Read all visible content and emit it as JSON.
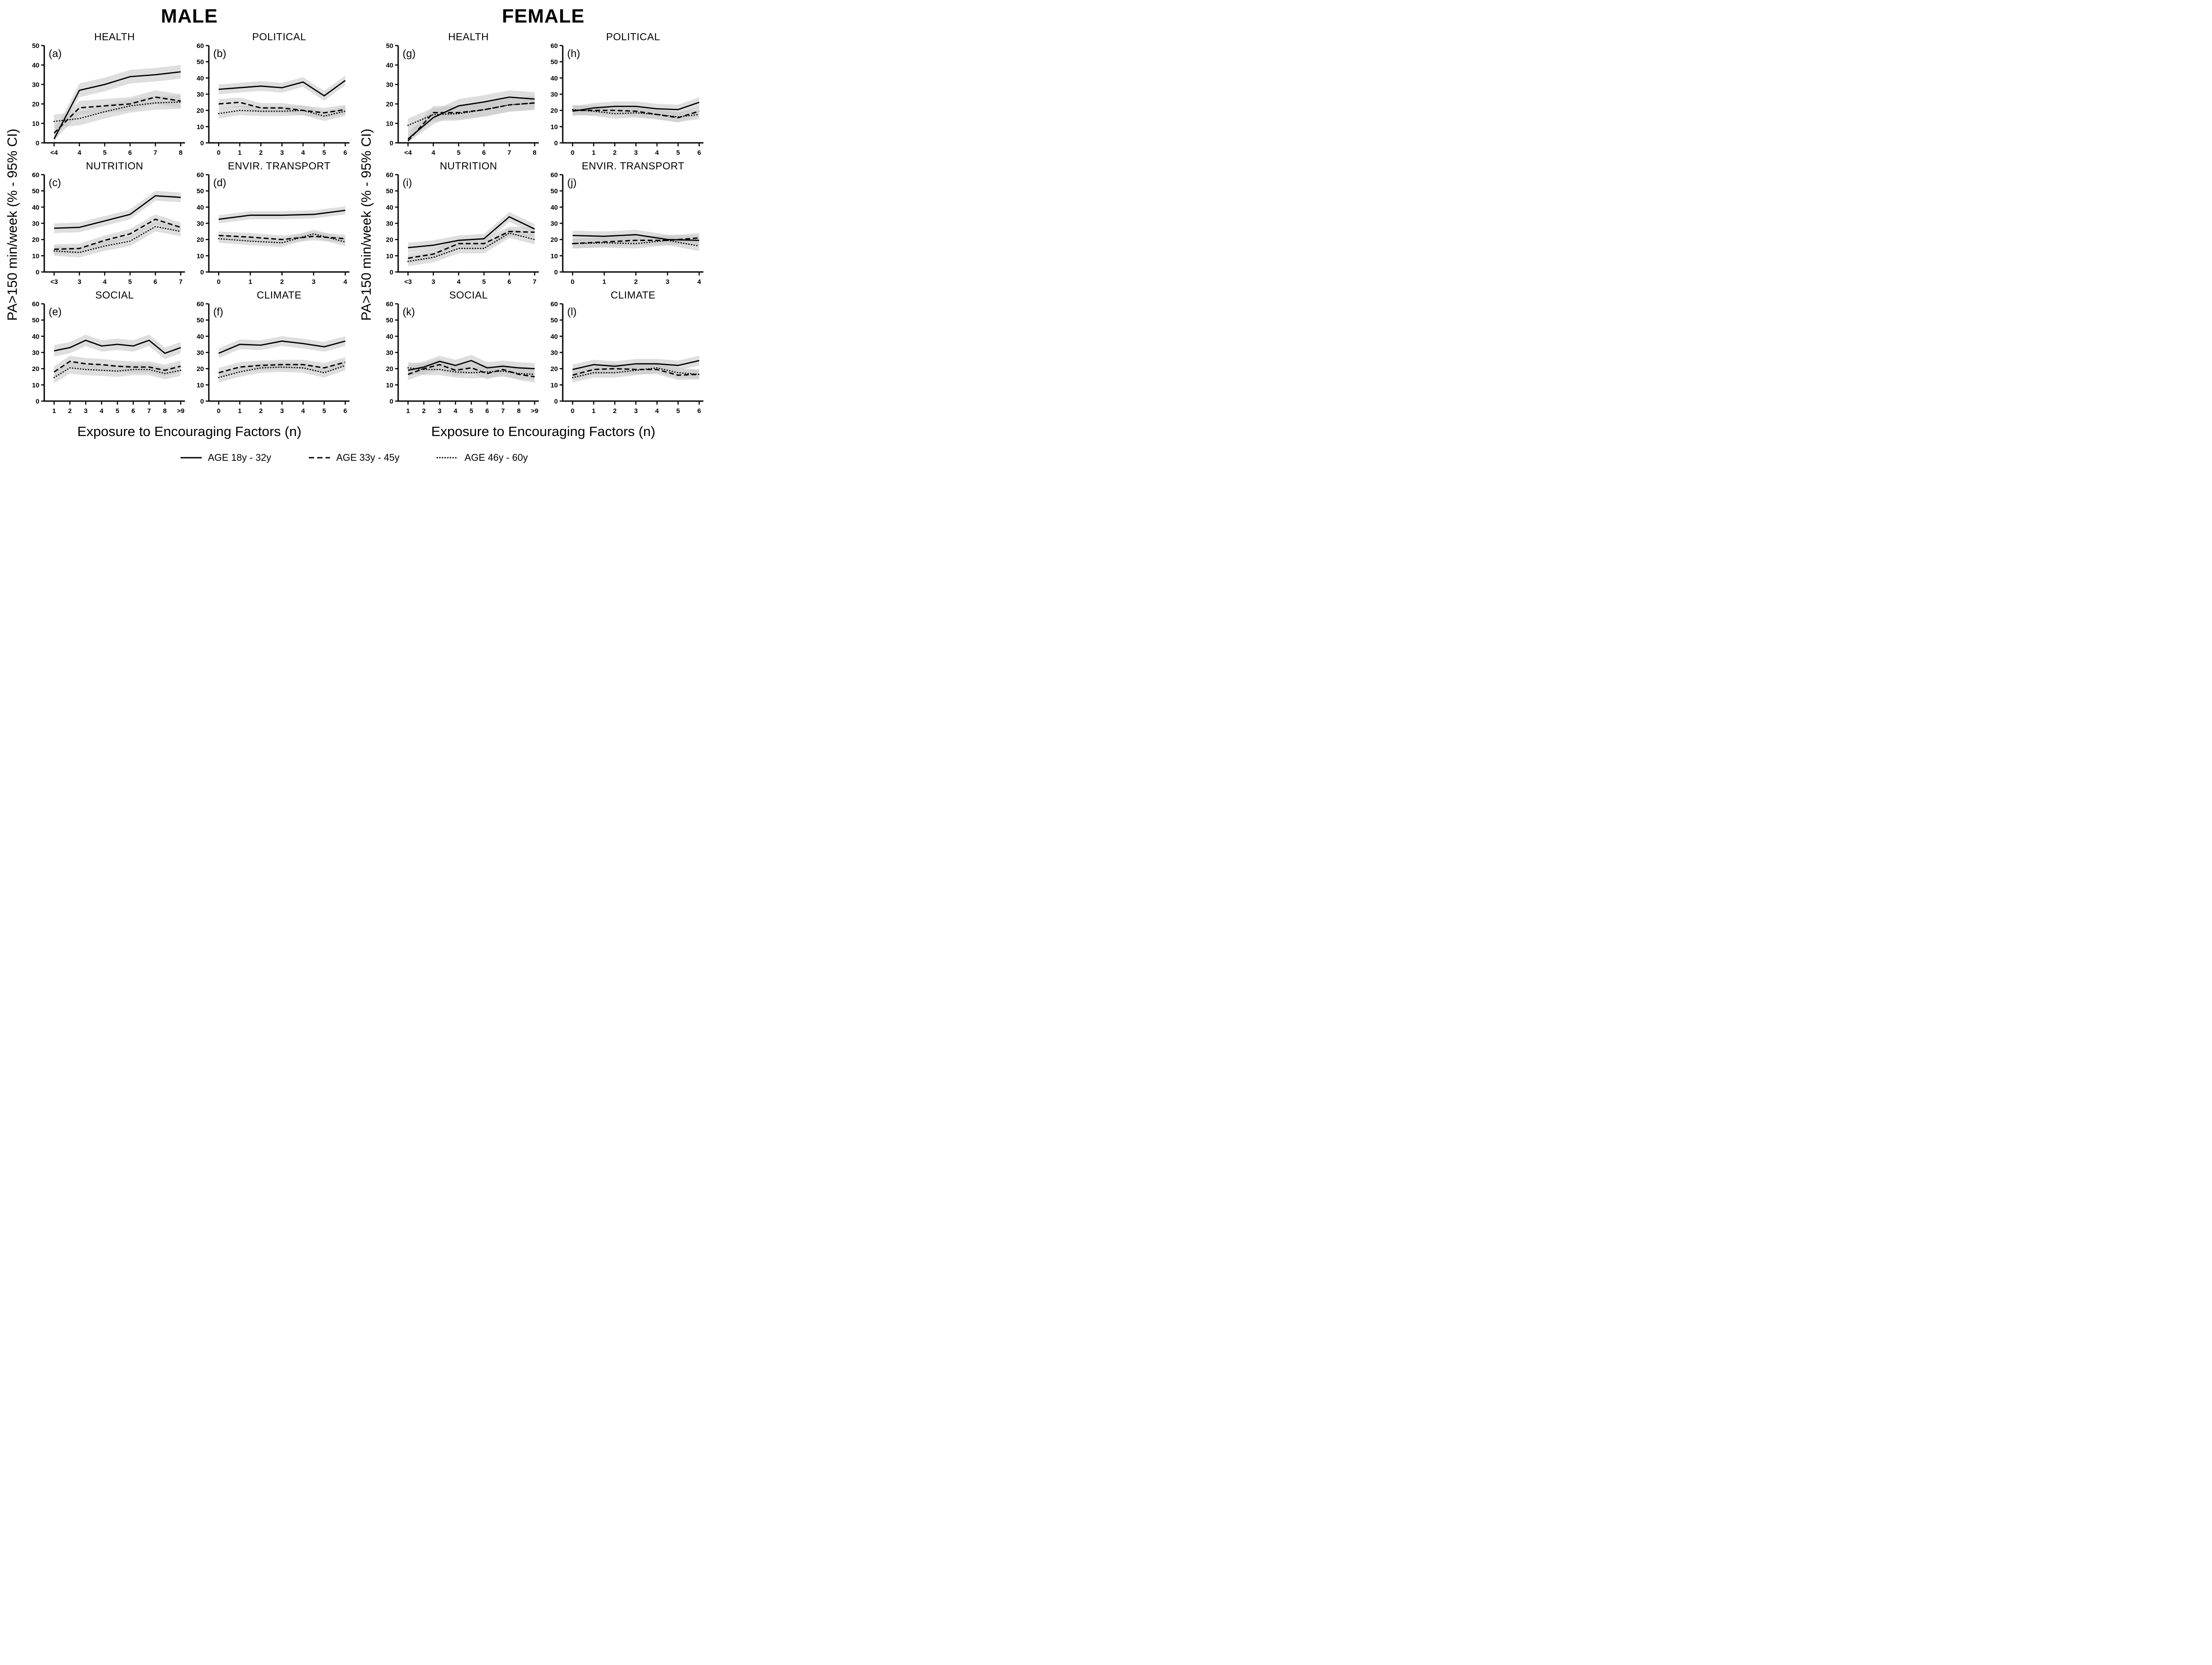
{
  "figure": {
    "male_title": "MALE",
    "female_title": "FEMALE",
    "y_axis_label": "PA>150 min/week (% - 95% CI)",
    "x_axis_label": "Exposure to Encouraging Factors  (n)",
    "band_color": "#c8c8c8",
    "line_color": "#000000",
    "legend": [
      {
        "label": "AGE 18y - 32y",
        "style": "solid"
      },
      {
        "label": "AGE 33y - 45y",
        "style": "dashed"
      },
      {
        "label": "AGE 46y - 60y",
        "style": "dotted"
      }
    ]
  },
  "chart_data": [
    {
      "panel_label": "(a)",
      "group": "MALE",
      "title": "HEALTH",
      "type": "line",
      "x_categories": [
        "<4",
        "4",
        "5",
        "6",
        "7",
        "8"
      ],
      "ylim": [
        0,
        50
      ],
      "y_ticks": [
        0,
        10,
        20,
        30,
        40,
        50
      ],
      "band_halfwidth": 3.5,
      "series": [
        {
          "name": "AGE 18y - 32y",
          "style": "solid",
          "values": [
            2,
            27,
            30,
            34,
            35,
            36.5
          ]
        },
        {
          "name": "AGE 33y - 45y",
          "style": "dashed",
          "values": [
            5,
            18,
            19,
            20,
            23.5,
            21.5
          ]
        },
        {
          "name": "AGE 46y - 60y",
          "style": "dotted",
          "values": [
            11,
            12.5,
            16,
            19,
            20.5,
            21
          ]
        }
      ]
    },
    {
      "panel_label": "(b)",
      "group": "MALE",
      "title": "POLITICAL",
      "type": "line",
      "x_categories": [
        "0",
        "1",
        "2",
        "3",
        "4",
        "5",
        "6"
      ],
      "ylim": [
        0,
        60
      ],
      "y_ticks": [
        0,
        10,
        20,
        30,
        40,
        50,
        60
      ],
      "band_halfwidth": 3,
      "series": [
        {
          "name": "AGE 18y - 32y",
          "style": "solid",
          "values": [
            33,
            34,
            35,
            34,
            37.5,
            29,
            38.5
          ]
        },
        {
          "name": "AGE 33y - 45y",
          "style": "dashed",
          "values": [
            24,
            25,
            21.5,
            21.5,
            20,
            18.5,
            20.5
          ]
        },
        {
          "name": "AGE 46y - 60y",
          "style": "dotted",
          "values": [
            18,
            20,
            19.5,
            19.5,
            20,
            16.5,
            19.5
          ]
        }
      ]
    },
    {
      "panel_label": "(c)",
      "group": "MALE",
      "title": "NUTRITION",
      "type": "line",
      "x_categories": [
        "<3",
        "3",
        "4",
        "5",
        "6",
        "7"
      ],
      "ylim": [
        0,
        60
      ],
      "y_ticks": [
        0,
        10,
        20,
        30,
        40,
        50,
        60
      ],
      "band_halfwidth": 3,
      "series": [
        {
          "name": "AGE 18y - 32y",
          "style": "solid",
          "values": [
            27,
            27.5,
            31.5,
            35.5,
            47,
            46
          ]
        },
        {
          "name": "AGE 33y - 45y",
          "style": "dashed",
          "values": [
            14,
            14.5,
            19.5,
            23.5,
            32.5,
            27.5
          ]
        },
        {
          "name": "AGE 46y - 60y",
          "style": "dotted",
          "values": [
            13,
            12,
            16,
            19,
            28,
            25
          ]
        }
      ]
    },
    {
      "panel_label": "(d)",
      "group": "MALE",
      "title": "ENVIR. TRANSPORT",
      "type": "line",
      "x_categories": [
        "0",
        "1",
        "2",
        "3",
        "4"
      ],
      "ylim": [
        0,
        60
      ],
      "y_ticks": [
        0,
        10,
        20,
        30,
        40,
        50,
        60
      ],
      "band_halfwidth": 2.5,
      "series": [
        {
          "name": "AGE 18y - 32y",
          "style": "solid",
          "values": [
            32.5,
            35,
            35,
            35.5,
            38
          ]
        },
        {
          "name": "AGE 33y - 45y",
          "style": "dashed",
          "values": [
            22.5,
            21.5,
            20,
            22,
            20.5
          ]
        },
        {
          "name": "AGE 46y - 60y",
          "style": "dotted",
          "values": [
            20.5,
            19,
            18,
            23.5,
            18.5
          ]
        }
      ]
    },
    {
      "panel_label": "(e)",
      "group": "MALE",
      "title": "SOCIAL",
      "type": "line",
      "x_categories": [
        "1",
        "2",
        "3",
        "4",
        "5",
        "6",
        "7",
        "8",
        ">9"
      ],
      "ylim": [
        0,
        60
      ],
      "y_ticks": [
        0,
        10,
        20,
        30,
        40,
        50,
        60
      ],
      "band_halfwidth": 3.5,
      "series": [
        {
          "name": "AGE 18y - 32y",
          "style": "solid",
          "values": [
            31,
            33,
            37.5,
            34,
            35,
            34,
            37.5,
            29.5,
            33
          ]
        },
        {
          "name": "AGE 33y - 45y",
          "style": "dashed",
          "values": [
            18,
            24.5,
            23,
            22.5,
            21.5,
            21,
            21,
            19,
            21.5
          ]
        },
        {
          "name": "AGE 46y - 60y",
          "style": "dotted",
          "values": [
            14.5,
            20.5,
            19.5,
            19,
            18.5,
            19.5,
            19.5,
            17,
            19
          ]
        }
      ]
    },
    {
      "panel_label": "(f)",
      "group": "MALE",
      "title": "CLIMATE",
      "type": "line",
      "x_categories": [
        "0",
        "1",
        "2",
        "3",
        "4",
        "5",
        "6"
      ],
      "ylim": [
        0,
        60
      ],
      "y_ticks": [
        0,
        10,
        20,
        30,
        40,
        50,
        60
      ],
      "band_halfwidth": 3,
      "series": [
        {
          "name": "AGE 18y - 32y",
          "style": "solid",
          "values": [
            29.5,
            35,
            34.5,
            37,
            35.5,
            33.5,
            37
          ]
        },
        {
          "name": "AGE 33y - 45y",
          "style": "dashed",
          "values": [
            17.5,
            21,
            22,
            22.5,
            22.5,
            20.5,
            24
          ]
        },
        {
          "name": "AGE 46y - 60y",
          "style": "dotted",
          "values": [
            14.5,
            18,
            20.5,
            21,
            20.5,
            17.5,
            22
          ]
        }
      ]
    },
    {
      "panel_label": "(g)",
      "group": "FEMALE",
      "title": "HEALTH",
      "type": "line",
      "x_categories": [
        "<4",
        "4",
        "5",
        "6",
        "7",
        "8"
      ],
      "ylim": [
        0,
        50
      ],
      "y_ticks": [
        0,
        10,
        20,
        30,
        40,
        50
      ],
      "band_halfwidth": 3.5,
      "series": [
        {
          "name": "AGE 18y - 32y",
          "style": "solid",
          "values": [
            2,
            13,
            19,
            21,
            23.5,
            22.5
          ]
        },
        {
          "name": "AGE 33y - 45y",
          "style": "dashed",
          "values": [
            1,
            15.5,
            15.5,
            17,
            19.5,
            20.5
          ]
        },
        {
          "name": "AGE 46y - 60y",
          "style": "dotted",
          "values": [
            9,
            14.5,
            15,
            17,
            19.5,
            20.5
          ]
        }
      ]
    },
    {
      "panel_label": "(h)",
      "group": "FEMALE",
      "title": "POLITICAL",
      "type": "line",
      "x_categories": [
        "0",
        "1",
        "2",
        "3",
        "4",
        "5",
        "6"
      ],
      "ylim": [
        0,
        60
      ],
      "y_ticks": [
        0,
        10,
        20,
        30,
        40,
        50,
        60
      ],
      "band_halfwidth": 3,
      "series": [
        {
          "name": "AGE 18y - 32y",
          "style": "solid",
          "values": [
            19.5,
            21.5,
            22.5,
            22.5,
            21,
            20.5,
            25
          ]
        },
        {
          "name": "AGE 33y - 45y",
          "style": "dashed",
          "values": [
            20,
            20,
            20,
            19.5,
            17.5,
            15.5,
            19.5
          ]
        },
        {
          "name": "AGE 46y - 60y",
          "style": "dotted",
          "values": [
            20.5,
            19.5,
            18,
            18.5,
            17.5,
            16,
            17.5
          ]
        }
      ]
    },
    {
      "panel_label": "(i)",
      "group": "FEMALE",
      "title": "NUTRITION",
      "type": "line",
      "x_categories": [
        "<3",
        "3",
        "4",
        "5",
        "6",
        "7"
      ],
      "ylim": [
        0,
        60
      ],
      "y_ticks": [
        0,
        10,
        20,
        30,
        40,
        50,
        60
      ],
      "band_halfwidth": 3,
      "series": [
        {
          "name": "AGE 18y - 32y",
          "style": "solid",
          "values": [
            15,
            16.5,
            19.5,
            20.5,
            34,
            26.5
          ]
        },
        {
          "name": "AGE 33y - 45y",
          "style": "dashed",
          "values": [
            8.5,
            11,
            17.5,
            17.5,
            25,
            24.5
          ]
        },
        {
          "name": "AGE 46y - 60y",
          "style": "dotted",
          "values": [
            6.5,
            9,
            14.5,
            14.5,
            24,
            20
          ]
        }
      ]
    },
    {
      "panel_label": "(j)",
      "group": "FEMALE",
      "title": "ENVIR. TRANSPORT",
      "type": "line",
      "x_categories": [
        "0",
        "1",
        "2",
        "3",
        "4"
      ],
      "ylim": [
        0,
        60
      ],
      "y_ticks": [
        0,
        10,
        20,
        30,
        40,
        50,
        60
      ],
      "band_halfwidth": 3,
      "series": [
        {
          "name": "AGE 18y - 32y",
          "style": "solid",
          "values": [
            22.5,
            22,
            23,
            20,
            19.5
          ]
        },
        {
          "name": "AGE 33y - 45y",
          "style": "dashed",
          "values": [
            17.5,
            18.5,
            19.5,
            19.5,
            21
          ]
        },
        {
          "name": "AGE 46y - 60y",
          "style": "dotted",
          "values": [
            17.5,
            18,
            17.5,
            19.5,
            16
          ]
        }
      ]
    },
    {
      "panel_label": "(k)",
      "group": "FEMALE",
      "title": "SOCIAL",
      "type": "line",
      "x_categories": [
        "1",
        "2",
        "3",
        "4",
        "5",
        "6",
        "7",
        "8",
        ">9"
      ],
      "ylim": [
        0,
        60
      ],
      "y_ticks": [
        0,
        10,
        20,
        30,
        40,
        50,
        60
      ],
      "band_halfwidth": 3.5,
      "series": [
        {
          "name": "AGE 18y - 32y",
          "style": "solid",
          "values": [
            19,
            21,
            24.5,
            22,
            25,
            20.5,
            21.5,
            20.5,
            20
          ]
        },
        {
          "name": "AGE 33y - 45y",
          "style": "dashed",
          "values": [
            16.5,
            20,
            22.5,
            19,
            20.5,
            17,
            19.5,
            16.5,
            15
          ]
        },
        {
          "name": "AGE 46y - 60y",
          "style": "dotted",
          "values": [
            20.5,
            19.5,
            19.5,
            18,
            17.5,
            18,
            18.5,
            17,
            16.5
          ]
        }
      ]
    },
    {
      "panel_label": "(l)",
      "group": "FEMALE",
      "title": "CLIMATE",
      "type": "line",
      "x_categories": [
        "0",
        "1",
        "2",
        "3",
        "4",
        "5",
        "6"
      ],
      "ylim": [
        0,
        60
      ],
      "y_ticks": [
        0,
        10,
        20,
        30,
        40,
        50,
        60
      ],
      "band_halfwidth": 3,
      "series": [
        {
          "name": "AGE 18y - 32y",
          "style": "solid",
          "values": [
            19.5,
            22.5,
            21.5,
            23,
            23,
            22,
            25
          ]
        },
        {
          "name": "AGE 33y - 45y",
          "style": "dashed",
          "values": [
            16,
            19.5,
            20,
            19.5,
            19.5,
            16,
            16.5
          ]
        },
        {
          "name": "AGE 46y - 60y",
          "style": "dotted",
          "values": [
            14.5,
            17.5,
            17.5,
            19,
            20.5,
            17.5,
            16.5
          ]
        }
      ]
    }
  ]
}
